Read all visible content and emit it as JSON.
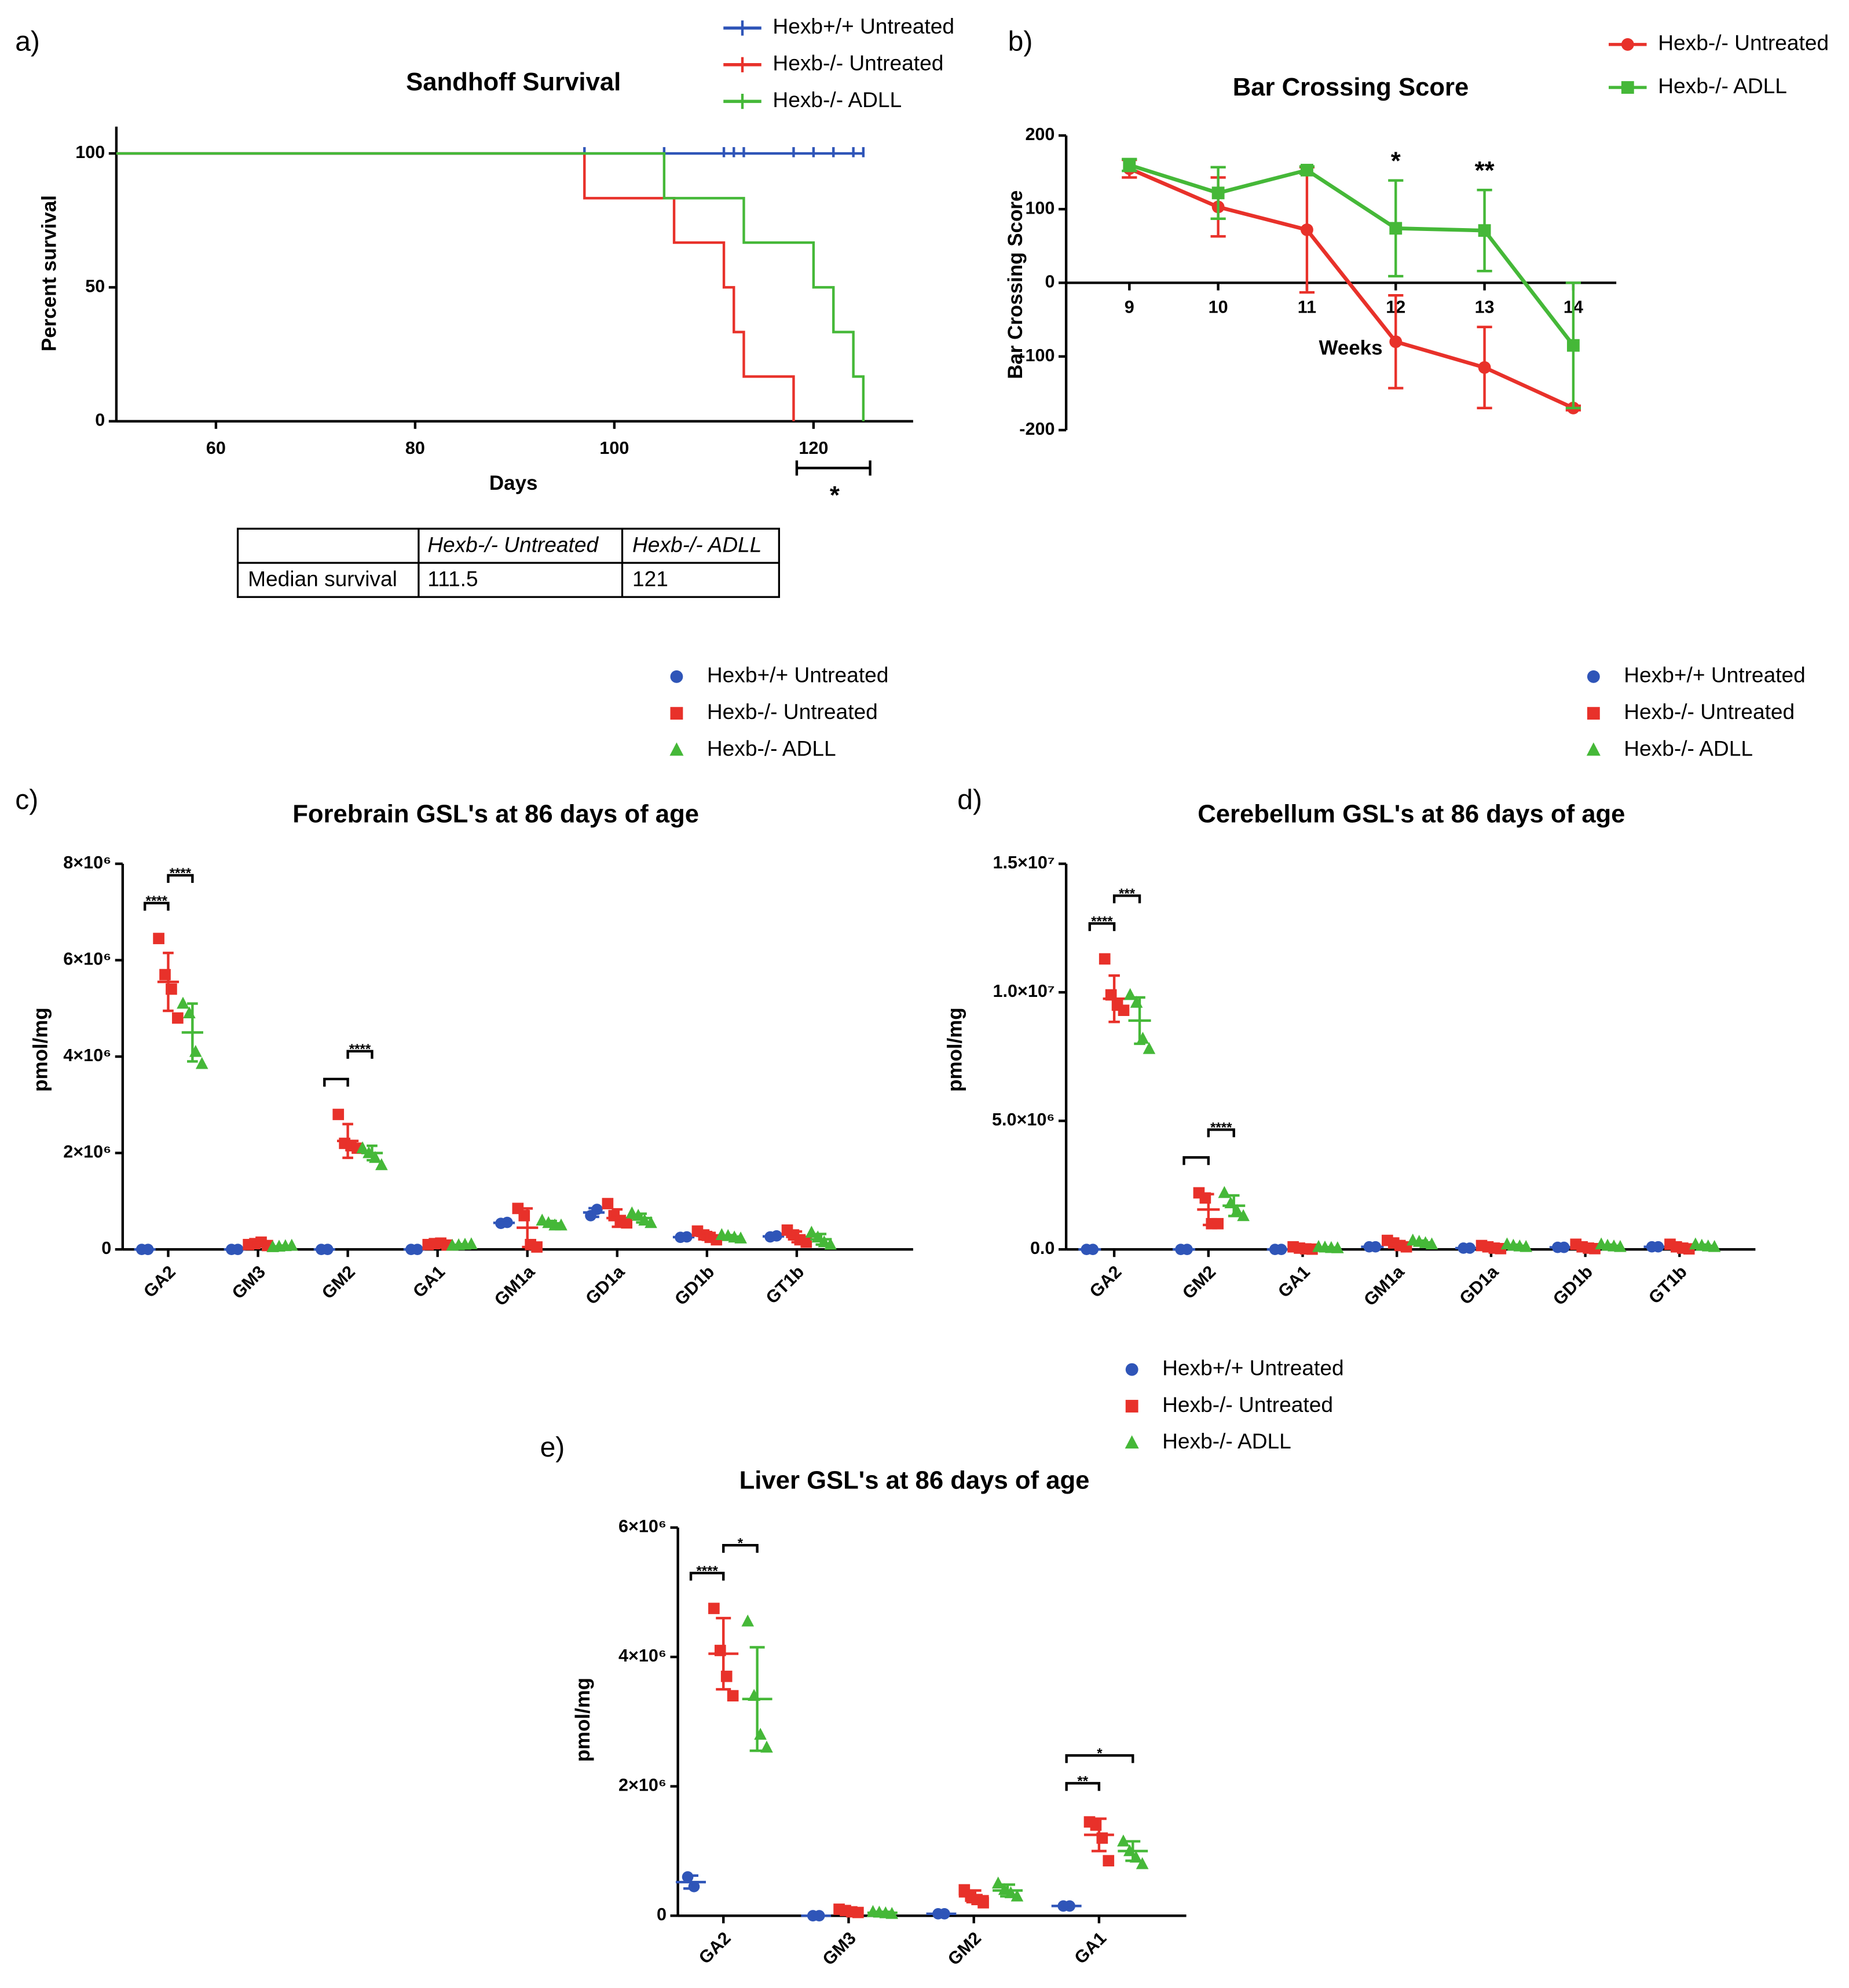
{
  "chart_data": [
    {
      "type": "survival",
      "panel": "a)",
      "title": "Sandhoff Survival",
      "xlabel": "Days",
      "ylabel": "Percent survival",
      "xlim": [
        50,
        130
      ],
      "xticks": [
        60,
        80,
        100,
        120
      ],
      "ylim": [
        0,
        110
      ],
      "yticks": [
        0,
        50,
        100
      ],
      "series": [
        {
          "name": "Hexb+/+ Untreated",
          "color": "#2f55b8",
          "x": [
            0,
            125
          ],
          "values": [
            100,
            100
          ],
          "censored": [
            97,
            105,
            111,
            112,
            113,
            118,
            120,
            122,
            124,
            125
          ]
        },
        {
          "name": "Hexb-/- Untreated",
          "color": "#e8312a",
          "x": [
            0,
            97,
            106,
            111,
            112,
            113,
            118
          ],
          "values": [
            100,
            83.3,
            66.7,
            50,
            33.3,
            16.7,
            0
          ]
        },
        {
          "name": "Hexb-/- ADLL",
          "color": "#45b838",
          "x": [
            0,
            105,
            113,
            120,
            122,
            124,
            125
          ],
          "values": [
            100,
            83.3,
            66.7,
            50,
            33.3,
            16.7,
            0
          ]
        }
      ],
      "annotations": [
        {
          "text": "*"
        }
      ],
      "table": {
        "columns": [
          "Hexb-/- Untreated",
          "Hexb-/- ADLL"
        ],
        "row_label": "Median survival",
        "values": [
          111.5,
          121
        ]
      }
    },
    {
      "type": "line",
      "panel": "b)",
      "title": "Bar Crossing Score",
      "xlabel": "Weeks",
      "ylabel": "Bar Crossing Score",
      "categories": [
        "9",
        "10",
        "11",
        "12",
        "13",
        "14"
      ],
      "ylim": [
        -200,
        200
      ],
      "yticks": [
        -200,
        -100,
        0,
        100,
        200
      ],
      "series": [
        {
          "name": "Hexb-/- Untreated",
          "color": "#e8312a",
          "marker": "circle",
          "values": [
            155,
            103,
            72,
            -80,
            -115,
            -170
          ],
          "errors": [
            12,
            40,
            85,
            63,
            55,
            3
          ]
        },
        {
          "name": "Hexb-/- ADLL",
          "color": "#45b838",
          "marker": "square",
          "values": [
            160,
            122,
            153,
            74,
            71,
            -85
          ],
          "errors": [
            8,
            35,
            5,
            65,
            55,
            85
          ]
        }
      ],
      "annotations": [
        {
          "text": "*",
          "category": 3
        },
        {
          "text": "**",
          "category": 4
        }
      ]
    },
    {
      "type": "dot",
      "panel": "c)",
      "title": "Forebrain GSL's at 86 days of age",
      "ylabel": "pmol/mg",
      "categories": [
        "GA2",
        "GM3",
        "GM2",
        "GA1",
        "GM1a",
        "GD1a",
        "GD1b",
        "GT1b"
      ],
      "ylim": [
        0,
        8000000
      ],
      "yticks": [
        0,
        {
          "value": 2000000,
          "label": "2×10⁶"
        },
        {
          "value": 4000000,
          "label": "4×10⁶"
        },
        {
          "value": 6000000,
          "label": "6×10⁶"
        },
        {
          "value": 8000000,
          "label": "8×10⁶"
        }
      ],
      "series": [
        {
          "name": "Hexb+/+ Untreated",
          "color": "#2f55b8",
          "marker": "circle",
          "points": [
            [
              0,
              0
            ],
            [
              0,
              0
            ],
            [
              0,
              0
            ],
            [
              0,
              0
            ],
            [
              540000,
              560000
            ],
            [
              700000,
              830000
            ],
            [
              250000,
              260000
            ],
            [
              260000,
              280000
            ]
          ],
          "means": [
            0,
            0,
            0,
            0,
            550000,
            765000,
            255000,
            270000
          ],
          "errors": [
            0,
            0,
            0,
            0,
            10000,
            90000,
            5000,
            10000
          ]
        },
        {
          "name": "Hexb-/- Untreated",
          "color": "#e8312a",
          "marker": "square",
          "points": [
            [
              6450000,
              5700000,
              5400000,
              4800000
            ],
            [
              100000,
              120000,
              150000,
              80000
            ],
            [
              2800000,
              2200000,
              2150000,
              2100000
            ],
            [
              100000,
              120000,
              130000,
              90000
            ],
            [
              850000,
              700000,
              100000,
              50000
            ],
            [
              950000,
              700000,
              600000,
              550000
            ],
            [
              380000,
              300000,
              250000,
              200000
            ],
            [
              400000,
              300000,
              200000,
              150000
            ]
          ],
          "means": [
            5550000,
            110000,
            2250000,
            110000,
            450000,
            650000,
            280000,
            260000
          ],
          "errors": [
            600000,
            30000,
            350000,
            20000,
            400000,
            180000,
            80000,
            110000
          ]
        },
        {
          "name": "Hexb-/- ADLL",
          "color": "#45b838",
          "marker": "triangle",
          "points": [
            [
              5100000,
              4900000,
              4100000,
              3850000
            ],
            [
              50000,
              60000,
              70000,
              80000
            ],
            [
              2100000,
              2000000,
              1900000,
              1750000
            ],
            [
              80000,
              90000,
              100000,
              110000
            ],
            [
              600000,
              550000,
              500000,
              500000
            ],
            [
              750000,
              700000,
              600000,
              550000
            ],
            [
              300000,
              280000,
              250000,
              230000
            ],
            [
              350000,
              250000,
              150000,
              100000
            ]
          ],
          "means": [
            4500000,
            65000,
            2000000,
            95000,
            540000,
            650000,
            265000,
            210000
          ],
          "errors": [
            600000,
            15000,
            150000,
            15000,
            50000,
            90000,
            30000,
            110000
          ]
        }
      ],
      "annotations": [
        {
          "text": "****",
          "category": 0,
          "pair": [
            0,
            1
          ]
        },
        {
          "text": "****",
          "category": 0,
          "pair": [
            1,
            2
          ]
        },
        {
          "category": 2,
          "pair": [
            0,
            1
          ]
        },
        {
          "text": "****",
          "category": 2,
          "pair": [
            1,
            2
          ]
        }
      ]
    },
    {
      "type": "dot",
      "panel": "d)",
      "title": "Cerebellum GSL's at 86 days of age",
      "ylabel": "pmol/mg",
      "categories": [
        "GA2",
        "GM2",
        "GA1",
        "GM1a",
        "GD1a",
        "GD1b",
        "GT1b"
      ],
      "ylim": [
        0,
        15000000
      ],
      "yticks": [
        {
          "value": 0,
          "label": "0.0"
        },
        {
          "value": 5000000,
          "label": "5.0×10⁶"
        },
        {
          "value": 10000000,
          "label": "1.0×10⁷"
        },
        {
          "value": 15000000,
          "label": "1.5×10⁷"
        }
      ],
      "series": [
        {
          "name": "Hexb+/+ Untreated",
          "color": "#2f55b8",
          "marker": "circle",
          "points": [
            [
              0,
              0
            ],
            [
              0,
              0
            ],
            [
              0,
              0
            ],
            [
              100000,
              100000
            ],
            [
              50000,
              50000
            ],
            [
              80000,
              80000
            ],
            [
              100000,
              100000
            ]
          ],
          "means": [
            0,
            0,
            0,
            100000,
            50000,
            80000,
            100000
          ],
          "errors": [
            0,
            0,
            0,
            0,
            0,
            0,
            0
          ]
        },
        {
          "name": "Hexb-/- Untreated",
          "color": "#e8312a",
          "marker": "square",
          "points": [
            [
              11300000,
              9900000,
              9500000,
              9300000
            ],
            [
              2200000,
              2000000,
              1000000,
              1000000
            ],
            [
              100000,
              50000,
              20000,
              10000
            ],
            [
              350000,
              250000,
              150000,
              100000
            ],
            [
              150000,
              100000,
              50000,
              30000
            ],
            [
              200000,
              100000,
              50000,
              30000
            ],
            [
              200000,
              100000,
              50000,
              20000
            ]
          ],
          "means": [
            9750000,
            1550000,
            45000,
            210000,
            80000,
            95000,
            90000
          ],
          "errors": [
            900000,
            600000,
            40000,
            110000,
            55000,
            75000,
            80000
          ]
        },
        {
          "name": "Hexb-/- ADLL",
          "color": "#45b838",
          "marker": "triangle",
          "points": [
            [
              9900000,
              9600000,
              8200000,
              7800000
            ],
            [
              2200000,
              1800000,
              1500000,
              1300000
            ],
            [
              100000,
              80000,
              60000,
              50000
            ],
            [
              350000,
              300000,
              250000,
              200000
            ],
            [
              200000,
              150000,
              120000,
              100000
            ],
            [
              200000,
              150000,
              120000,
              100000
            ],
            [
              200000,
              150000,
              120000,
              100000
            ]
          ],
          "means": [
            8900000,
            1700000,
            70000,
            275000,
            140000,
            140000,
            140000
          ],
          "errors": [
            900000,
            400000,
            20000,
            65000,
            45000,
            45000,
            45000
          ]
        }
      ],
      "annotations": [
        {
          "text": "****",
          "category": 0,
          "pair": [
            0,
            1
          ]
        },
        {
          "text": "***",
          "category": 0,
          "pair": [
            1,
            2
          ]
        },
        {
          "category": 1,
          "pair": [
            0,
            1
          ]
        },
        {
          "text": "****",
          "category": 1,
          "pair": [
            1,
            2
          ]
        }
      ]
    },
    {
      "type": "dot",
      "panel": "e)",
      "title": "Liver GSL's at 86 days of age",
      "ylabel": "pmol/mg",
      "categories": [
        "GA2",
        "GM3",
        "GM2",
        "GA1"
      ],
      "ylim": [
        0,
        6000000
      ],
      "yticks": [
        0,
        {
          "value": 2000000,
          "label": "2×10⁶"
        },
        {
          "value": 4000000,
          "label": "4×10⁶"
        },
        {
          "value": 6000000,
          "label": "6×10⁶"
        }
      ],
      "series": [
        {
          "name": "Hexb+/+ Untreated",
          "color": "#2f55b8",
          "marker": "circle",
          "points": [
            [
              600000,
              450000
            ],
            [
              0,
              0
            ],
            [
              30000,
              30000
            ],
            [
              150000,
              150000
            ]
          ],
          "means": [
            520000,
            0,
            30000,
            150000
          ],
          "errors": [
            100000,
            0,
            0,
            0
          ]
        },
        {
          "name": "Hexb-/- Untreated",
          "color": "#e8312a",
          "marker": "square",
          "points": [
            [
              4750000,
              4100000,
              3700000,
              3400000
            ],
            [
              100000,
              80000,
              60000,
              50000
            ],
            [
              400000,
              300000,
              250000,
              200000
            ],
            [
              1450000,
              1400000,
              1200000,
              850000
            ]
          ],
          "means": [
            4050000,
            72000,
            300000,
            1250000
          ],
          "errors": [
            550000,
            20000,
            90000,
            250000
          ]
        },
        {
          "name": "Hexb-/- ADLL",
          "color": "#45b838",
          "marker": "triangle",
          "points": [
            [
              4550000,
              3400000,
              2800000,
              2600000
            ],
            [
              60000,
              50000,
              40000,
              30000
            ],
            [
              500000,
              400000,
              350000,
              300000
            ],
            [
              1150000,
              1000000,
              900000,
              800000
            ]
          ],
          "means": [
            3350000,
            45000,
            390000,
            1000000
          ],
          "errors": [
            800000,
            15000,
            90000,
            150000
          ]
        }
      ],
      "annotations": [
        {
          "text": "****",
          "category": 0,
          "pair": [
            0,
            1
          ]
        },
        {
          "text": "*",
          "category": 0,
          "pair": [
            1,
            2
          ]
        },
        {
          "text": "**",
          "category": 3,
          "pair": [
            0,
            1
          ]
        },
        {
          "text": "*",
          "category": 3,
          "pair": [
            0,
            2
          ]
        }
      ]
    }
  ]
}
